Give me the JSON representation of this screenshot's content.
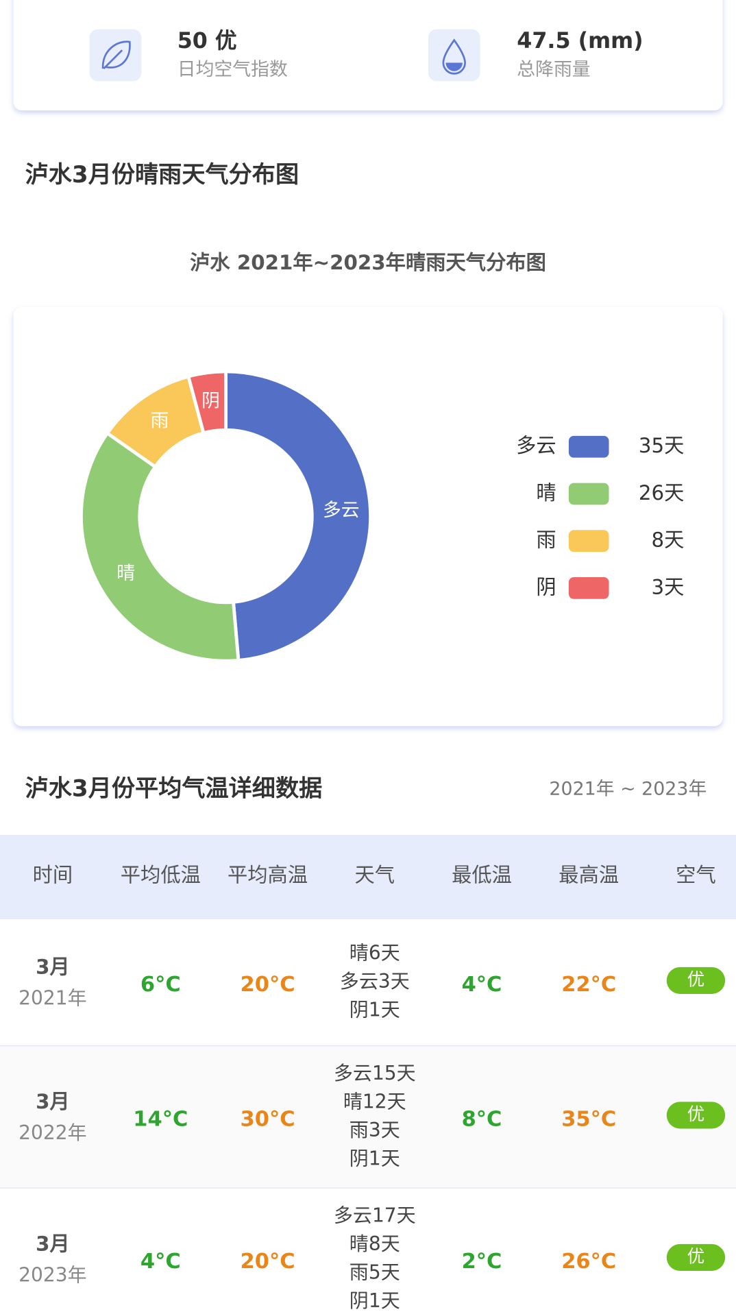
{
  "stats": [
    {
      "value": "50 优",
      "label": "日均空气指数"
    },
    {
      "value": "47.5 (mm)",
      "label": "总降雨量"
    }
  ],
  "section_title": "泸水3月份晴雨天气分布图",
  "chart_data": {
    "type": "pie",
    "donut": true,
    "title": "泸水 2021年~2023年晴雨天气分布图",
    "categories": [
      "多云",
      "晴",
      "雨",
      "阴"
    ],
    "values": [
      35,
      26,
      8,
      3
    ],
    "value_labels": [
      "35天",
      "26天",
      "8天",
      "3天"
    ],
    "colors": [
      "#5470c6",
      "#91cc75",
      "#fac858",
      "#ee6666"
    ],
    "legend": "right"
  },
  "table_section": {
    "title": "泸水3月份平均气温详细数据",
    "range": "2021年 ~ 2023年"
  },
  "table": {
    "headers": [
      "时间",
      "平均低温",
      "平均高温",
      "天气",
      "最低温",
      "最高温",
      "空气"
    ],
    "rows": [
      {
        "month": "3月",
        "year": "2021年",
        "avg_low": "6°C",
        "avg_high": "20°C",
        "weather": [
          "晴6天",
          "多云3天",
          "阴1天"
        ],
        "min": "4°C",
        "max": "22°C",
        "air": "优"
      },
      {
        "month": "3月",
        "year": "2022年",
        "avg_low": "14°C",
        "avg_high": "30°C",
        "weather": [
          "多云15天",
          "晴12天",
          "雨3天",
          "阴1天"
        ],
        "min": "8°C",
        "max": "35°C",
        "air": "优"
      },
      {
        "month": "3月",
        "year": "2023年",
        "avg_low": "4°C",
        "avg_high": "20°C",
        "weather": [
          "多云17天",
          "晴8天",
          "雨5天",
          "阴1天"
        ],
        "min": "2°C",
        "max": "26°C",
        "air": "优"
      }
    ]
  }
}
